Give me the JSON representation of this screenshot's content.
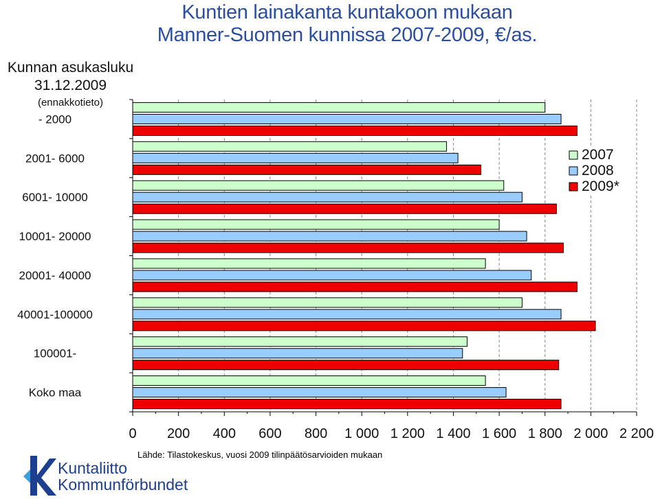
{
  "title": {
    "line1": "Kuntien lainakanta kuntakoon mukaan",
    "line2": "Manner-Suomen kunnissa 2007-2009, €/as."
  },
  "side_header": {
    "line1": "Kunnan asukasluku",
    "line2": "31.12.2009",
    "line3": "(ennakkotieto)"
  },
  "source": "Lähde: Tilastokeskus, vuosi 2009 tilinpäätösarvioiden mukaan",
  "logo": {
    "line1": "Kuntaliitto",
    "line2": "Kommunförbundet"
  },
  "colors": {
    "title": "#2a4fa0",
    "series_2007": "#ccffcc",
    "series_2008": "#99ccff",
    "series_2009": "#ee0000",
    "logo": "#1d3f8f"
  },
  "chart_data": {
    "type": "bar",
    "orientation": "horizontal",
    "categories": [
      " -  2000",
      "2001-   6000",
      "6001-  10000",
      "10001-  20000",
      "20001-  40000",
      "40001-100000",
      "100001-",
      "Koko maa"
    ],
    "series": [
      {
        "name": "2007",
        "values": [
          1800,
          1370,
          1620,
          1600,
          1540,
          1700,
          1460,
          1540
        ]
      },
      {
        "name": "2008",
        "values": [
          1870,
          1420,
          1700,
          1720,
          1740,
          1870,
          1440,
          1630
        ]
      },
      {
        "name": "2009*",
        "values": [
          1940,
          1520,
          1850,
          1880,
          1940,
          2020,
          1860,
          1870
        ]
      }
    ],
    "xlim": [
      0,
      2200
    ],
    "x_ticks": [
      0,
      200,
      400,
      600,
      800,
      1000,
      1200,
      1400,
      1600,
      1800,
      2000,
      2200
    ],
    "x_tick_labels": [
      "0",
      "200",
      "400",
      "600",
      "800",
      "1 000",
      "1 200",
      "1 400",
      "1 600",
      "1 800",
      "2 000",
      "2 200"
    ],
    "grid": "vertical dashed",
    "legend": "top-right"
  }
}
